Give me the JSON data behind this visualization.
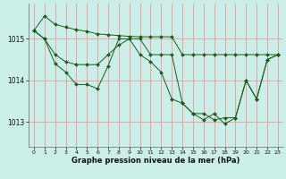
{
  "title": "Graphe pression niveau de la mer (hPa)",
  "bg_color": "#cceee8",
  "grid_color": "#ee9999",
  "line_color": "#1a5c1a",
  "xlim": [
    -0.5,
    23.5
  ],
  "ylim": [
    1012.4,
    1015.85
  ],
  "yticks": [
    1013,
    1014,
    1015
  ],
  "xticks": [
    0,
    1,
    2,
    3,
    4,
    5,
    6,
    7,
    8,
    9,
    10,
    11,
    12,
    13,
    14,
    15,
    16,
    17,
    18,
    19,
    20,
    21,
    22,
    23
  ],
  "series": [
    {
      "x": [
        0,
        1,
        2,
        3,
        4,
        5,
        6,
        7,
        8,
        9,
        10,
        11,
        12,
        13,
        14,
        15,
        16,
        17,
        18,
        19,
        20,
        21,
        22,
        23
      ],
      "y": [
        1015.2,
        1015.55,
        1015.35,
        1015.28,
        1015.22,
        1015.18,
        1015.12,
        1015.1,
        1015.08,
        1015.06,
        1015.05,
        1015.05,
        1015.05,
        1015.05,
        1014.62,
        1014.62,
        1014.62,
        1014.62,
        1014.62,
        1014.62,
        1014.62,
        1014.62,
        1014.62,
        1014.62
      ]
    },
    {
      "x": [
        0,
        1,
        2,
        3,
        4,
        5,
        6,
        7,
        8,
        9,
        10,
        11,
        12,
        13,
        14,
        15,
        16,
        17,
        18,
        19,
        20,
        21,
        22,
        23
      ],
      "y": [
        1015.2,
        1015.0,
        1014.62,
        1014.45,
        1014.38,
        1014.38,
        1014.38,
        1014.62,
        1014.85,
        1015.0,
        1015.0,
        1014.62,
        1014.62,
        1014.62,
        1013.45,
        1013.2,
        1013.2,
        1013.05,
        1013.1,
        1013.1,
        1014.0,
        1013.55,
        1014.5,
        1014.62
      ]
    },
    {
      "x": [
        0,
        1,
        2,
        3,
        4,
        5,
        6,
        7,
        8,
        9,
        10,
        11,
        12,
        13,
        14,
        15,
        16,
        17,
        18,
        19,
        20,
        21,
        22,
        23
      ],
      "y": [
        1015.2,
        1015.0,
        1014.4,
        1014.2,
        1013.9,
        1013.9,
        1013.8,
        1014.35,
        1015.0,
        1015.0,
        1014.62,
        1014.45,
        1014.2,
        1013.55,
        1013.45,
        1013.2,
        1013.05,
        1013.2,
        1012.95,
        1013.1,
        1014.0,
        1013.55,
        1014.5,
        1014.62
      ]
    }
  ]
}
